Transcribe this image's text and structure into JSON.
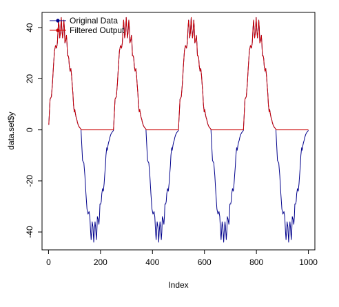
{
  "chart_data": {
    "type": "line",
    "xlabel": "Index",
    "ylabel": "data.set$y",
    "xlim": [
      -25,
      1025
    ],
    "ylim": [
      -47,
      46
    ],
    "x_ticks": [
      0,
      200,
      400,
      600,
      800,
      1000
    ],
    "y_ticks": [
      -40,
      -20,
      0,
      20,
      40
    ],
    "x_tick_labels": [
      "0",
      "200",
      "400",
      "600",
      "800",
      "1000"
    ],
    "y_tick_labels": [
      "-40",
      "-20",
      "0",
      "20",
      "40"
    ],
    "grid": false,
    "legend_position": "top-left",
    "period": 250,
    "n_points": 1000,
    "half_cycle_shape": {
      "t": [
        0,
        5,
        10,
        14,
        18,
        22,
        26,
        30,
        33,
        36,
        38,
        40,
        42,
        45,
        48,
        50,
        53,
        55,
        58,
        60,
        62,
        65,
        68,
        70,
        72,
        75,
        77,
        79,
        82,
        85,
        88,
        90,
        93,
        95,
        98,
        100,
        103,
        105,
        108,
        110,
        113,
        115,
        118,
        122,
        125
      ],
      "y": [
        2,
        12,
        13,
        18,
        25,
        31,
        33,
        32,
        34,
        40,
        43,
        40,
        36,
        38,
        44,
        40,
        36,
        38,
        43,
        40,
        34,
        35,
        37,
        34,
        29,
        29,
        28,
        25,
        23,
        24,
        21,
        18,
        14,
        10,
        7,
        8,
        6,
        5,
        4,
        3,
        2,
        1.5,
        1,
        0.5,
        0
      ]
    },
    "series": [
      {
        "name": "Original Data",
        "color": "#00008b",
        "values_rule": "sign-alternating sine-like wave, period 250, amplitude ~44"
      },
      {
        "name": "Filtered Output",
        "color": "#cc0000",
        "values_rule": "max(original, 0)"
      }
    ]
  }
}
